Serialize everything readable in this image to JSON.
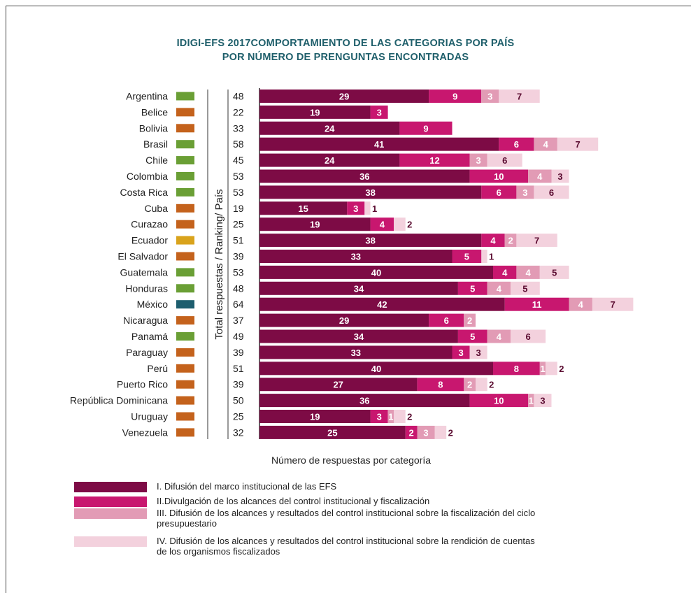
{
  "chart_data": {
    "type": "bar",
    "orientation": "horizontal",
    "stacked": true,
    "title_lines": [
      "IDIGI-EFS 2017COMPORTAMIENTO DE LAS CATEGORIAS POR PAÍS",
      "POR NÚMERO DE PRENGUNTAS  ENCONTRADAS"
    ],
    "xlabel": "Número de respuestas por categoría",
    "ylabel": "Total respuestas / Ranking/ País",
    "xlim": [
      0,
      70
    ],
    "grid": false,
    "legend_position": "bottom",
    "categories": [
      "Argentina",
      "Belice",
      "Bolivia",
      "Brasil",
      "Chile",
      "Colombia",
      "Costa Rica",
      "Cuba",
      "Curazao",
      "Ecuador",
      "El Salvador",
      "Guatemala",
      "Honduras",
      "México",
      "Nicaragua",
      "Panamá",
      "Paraguay",
      "Perú",
      "Puerto Rico",
      "República Dominicana",
      "Uruguay",
      "Venezuela"
    ],
    "totals": [
      48,
      22,
      33,
      58,
      45,
      53,
      53,
      19,
      25,
      51,
      39,
      53,
      48,
      64,
      37,
      49,
      39,
      51,
      39,
      50,
      25,
      32
    ],
    "ranking_colors": [
      "#6a9f35",
      "#c4621c",
      "#c4621c",
      "#6a9f35",
      "#6a9f35",
      "#6a9f35",
      "#6a9f35",
      "#c4621c",
      "#c4621c",
      "#d9a31c",
      "#c4621c",
      "#6a9f35",
      "#6a9f35",
      "#1d5e6e",
      "#c4621c",
      "#6a9f35",
      "#c4621c",
      "#c4621c",
      "#c4621c",
      "#c4621c",
      "#c4621c",
      "#c4621c"
    ],
    "series": [
      {
        "name": "I. Difusión del marco institucional de las EFS",
        "color": "#7d0b45",
        "values": [
          29,
          19,
          24,
          41,
          24,
          36,
          38,
          15,
          19,
          38,
          33,
          40,
          34,
          42,
          29,
          34,
          33,
          40,
          27,
          36,
          19,
          25
        ]
      },
      {
        "name": "II.Divulgación de los alcances del control institucional y fiscalización",
        "color": "#c8176f",
        "values": [
          9,
          3,
          9,
          6,
          12,
          10,
          6,
          3,
          4,
          4,
          5,
          4,
          5,
          11,
          6,
          5,
          3,
          8,
          8,
          10,
          3,
          2
        ]
      },
      {
        "name": "III. Difusión  de los  alcances y resultados del control institucional sobre la fiscalización del ciclo presupuestario",
        "color": "#e29bb5",
        "values": [
          3,
          0,
          0,
          4,
          3,
          4,
          3,
          0,
          0,
          2,
          0,
          4,
          4,
          4,
          2,
          4,
          0,
          1,
          2,
          1,
          1,
          3
        ]
      },
      {
        "name": "IV. Difusión de los alcances y resultados del control institucional  sobre la rendición de cuentas de los organismos fiscalizados",
        "color": "#f3d1dd",
        "values": [
          7,
          0,
          0,
          7,
          6,
          3,
          6,
          1,
          2,
          7,
          1,
          5,
          5,
          7,
          0,
          6,
          3,
          2,
          2,
          3,
          2,
          2
        ]
      }
    ]
  },
  "legend_text_lines": [
    [
      "I. Difusión del marco institucional de las EFS"
    ],
    [
      "II.Divulgación de los alcances del control institucional y fiscalización"
    ],
    [
      "III. Difusión  de los  alcances y resultados del control institucional sobre la fiscalización del ciclo",
      "presupuestario"
    ],
    [
      "IV. Difusión de los alcances y resultados del control institucional  sobre la rendición de cuentas",
      "de los organismos fiscalizados"
    ]
  ]
}
